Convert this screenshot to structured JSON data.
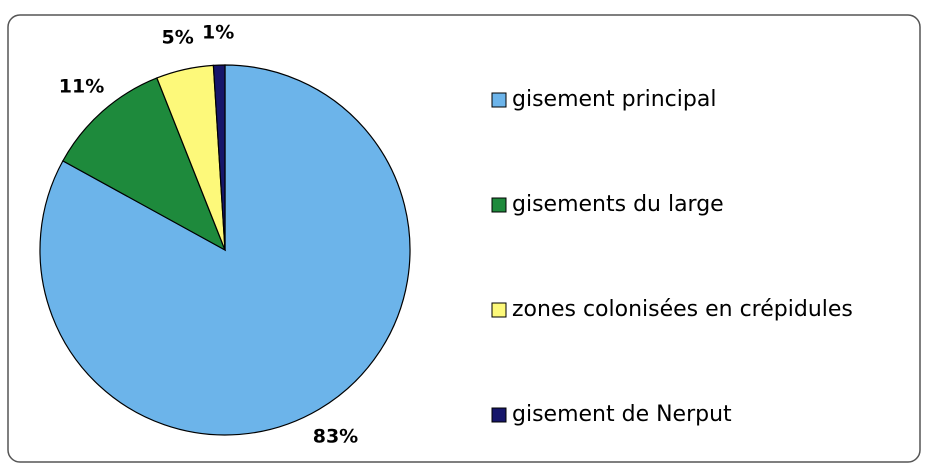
{
  "chart_data": {
    "type": "pie",
    "categories": [
      "gisement principal",
      "gisements du large",
      "zones colonisées en crépidules",
      "gisement de Nerput"
    ],
    "values": [
      83,
      11,
      5,
      1
    ],
    "value_labels": [
      "83%",
      "11%",
      "5%",
      "1%"
    ],
    "colors": [
      "#6cb4ea",
      "#1e8a3c",
      "#fdf97a",
      "#16166a"
    ],
    "legend": "right"
  }
}
